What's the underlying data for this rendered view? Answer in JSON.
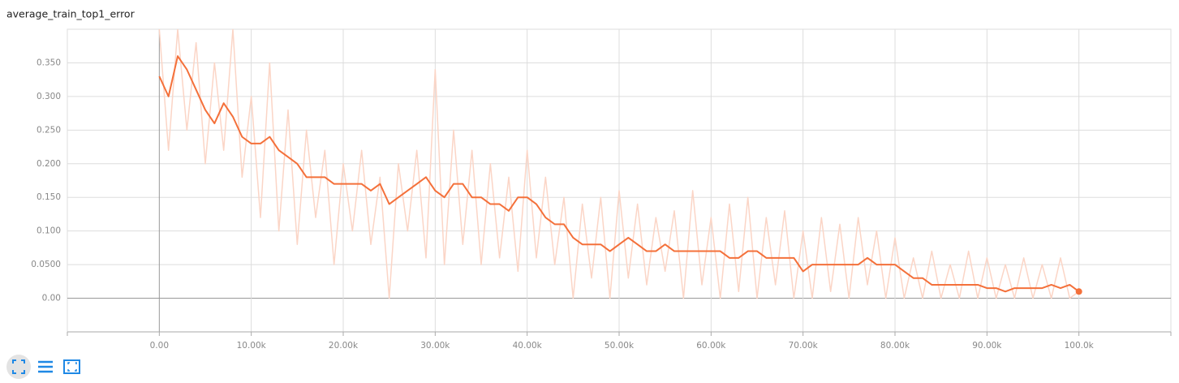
{
  "chart_data": {
    "type": "line",
    "title": "average_train_top1_error",
    "x": [
      0,
      1000,
      2000,
      3000,
      4000,
      5000,
      6000,
      7000,
      8000,
      9000,
      10000,
      11000,
      12000,
      13000,
      14000,
      15000,
      16000,
      17000,
      18000,
      19000,
      20000,
      21000,
      22000,
      23000,
      24000,
      25000,
      26000,
      27000,
      28000,
      29000,
      30000,
      31000,
      32000,
      33000,
      34000,
      35000,
      36000,
      37000,
      38000,
      39000,
      40000,
      41000,
      42000,
      43000,
      44000,
      45000,
      46000,
      47000,
      48000,
      49000,
      50000,
      51000,
      52000,
      53000,
      54000,
      55000,
      56000,
      57000,
      58000,
      59000,
      60000,
      61000,
      62000,
      63000,
      64000,
      65000,
      66000,
      67000,
      68000,
      69000,
      70000,
      71000,
      72000,
      73000,
      74000,
      75000,
      76000,
      77000,
      78000,
      79000,
      80000,
      81000,
      82000,
      83000,
      84000,
      85000,
      86000,
      87000,
      88000,
      89000,
      90000,
      91000,
      92000,
      93000,
      94000,
      95000,
      96000,
      97000,
      98000,
      99000,
      100000
    ],
    "series": [
      {
        "color": "#fbd5c6",
        "values": [
          0.4,
          0.22,
          0.4,
          0.25,
          0.38,
          0.2,
          0.35,
          0.22,
          0.4,
          0.18,
          0.3,
          0.12,
          0.35,
          0.1,
          0.28,
          0.08,
          0.25,
          0.12,
          0.22,
          0.05,
          0.2,
          0.1,
          0.22,
          0.08,
          0.18,
          0.0,
          0.2,
          0.1,
          0.22,
          0.06,
          0.34,
          0.05,
          0.25,
          0.08,
          0.22,
          0.05,
          0.2,
          0.06,
          0.18,
          0.04,
          0.22,
          0.06,
          0.18,
          0.05,
          0.15,
          0.0,
          0.14,
          0.03,
          0.15,
          0.0,
          0.16,
          0.03,
          0.14,
          0.02,
          0.12,
          0.04,
          0.13,
          0.0,
          0.16,
          0.02,
          0.12,
          0.0,
          0.14,
          0.01,
          0.15,
          0.0,
          0.12,
          0.02,
          0.13,
          0.0,
          0.1,
          0.0,
          0.12,
          0.01,
          0.11,
          0.0,
          0.12,
          0.02,
          0.1,
          0.0,
          0.09,
          0.0,
          0.06,
          0.0,
          0.07,
          0.0,
          0.05,
          0.0,
          0.07,
          0.0,
          0.06,
          0.0,
          0.05,
          0.0,
          0.06,
          0.0,
          0.05,
          0.0,
          0.06,
          0.0,
          0.01
        ]
      },
      {
        "color": "#f4703a",
        "values": [
          0.33,
          0.3,
          0.36,
          0.34,
          0.31,
          0.28,
          0.26,
          0.29,
          0.27,
          0.24,
          0.23,
          0.23,
          0.24,
          0.22,
          0.21,
          0.2,
          0.18,
          0.18,
          0.18,
          0.17,
          0.17,
          0.17,
          0.17,
          0.16,
          0.17,
          0.14,
          0.15,
          0.16,
          0.17,
          0.18,
          0.16,
          0.15,
          0.17,
          0.17,
          0.15,
          0.15,
          0.14,
          0.14,
          0.13,
          0.15,
          0.15,
          0.14,
          0.12,
          0.11,
          0.11,
          0.09,
          0.08,
          0.08,
          0.08,
          0.07,
          0.08,
          0.09,
          0.08,
          0.07,
          0.07,
          0.08,
          0.07,
          0.07,
          0.07,
          0.07,
          0.07,
          0.07,
          0.06,
          0.06,
          0.07,
          0.07,
          0.06,
          0.06,
          0.06,
          0.06,
          0.04,
          0.05,
          0.05,
          0.05,
          0.05,
          0.05,
          0.05,
          0.06,
          0.05,
          0.05,
          0.05,
          0.04,
          0.03,
          0.03,
          0.02,
          0.02,
          0.02,
          0.02,
          0.02,
          0.02,
          0.015,
          0.015,
          0.01,
          0.015,
          0.015,
          0.015,
          0.015,
          0.02,
          0.015,
          0.02,
          0.01
        ]
      }
    ],
    "xlim": [
      -10000,
      110000
    ],
    "xticks": [
      {
        "value": 0,
        "label": "0.00"
      },
      {
        "value": 10000,
        "label": "10.00k"
      },
      {
        "value": 20000,
        "label": "20.00k"
      },
      {
        "value": 30000,
        "label": "30.00k"
      },
      {
        "value": 40000,
        "label": "40.00k"
      },
      {
        "value": 50000,
        "label": "50.00k"
      },
      {
        "value": 60000,
        "label": "60.00k"
      },
      {
        "value": 70000,
        "label": "70.00k"
      },
      {
        "value": 80000,
        "label": "80.00k"
      },
      {
        "value": 90000,
        "label": "90.00k"
      },
      {
        "value": 100000,
        "label": "100.0k"
      }
    ],
    "ylim": [
      -0.05,
      0.4
    ],
    "yticks": [
      {
        "value": 0,
        "label": "0.00"
      },
      {
        "value": 0.05,
        "label": "0.0500"
      },
      {
        "value": 0.1,
        "label": "0.100"
      },
      {
        "value": 0.15,
        "label": "0.150"
      },
      {
        "value": 0.2,
        "label": "0.200"
      },
      {
        "value": 0.25,
        "label": "0.250"
      },
      {
        "value": 0.3,
        "label": "0.300"
      },
      {
        "value": 0.35,
        "label": "0.350"
      }
    ],
    "grid": true
  }
}
